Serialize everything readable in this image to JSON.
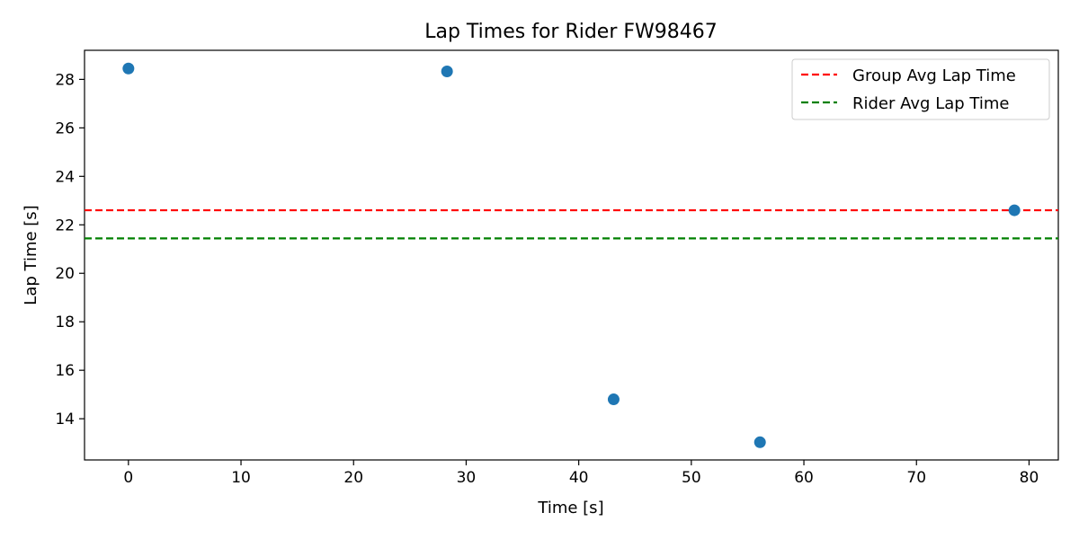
{
  "chart_data": {
    "type": "scatter",
    "title": "Lap Times for Rider FW98467",
    "xlabel": "Time [s]",
    "ylabel": "Lap Time [s]",
    "xlim": [
      -3.9,
      82.6
    ],
    "ylim": [
      12.3,
      29.2
    ],
    "xticks": [
      0,
      10,
      20,
      30,
      40,
      50,
      60,
      70,
      80
    ],
    "yticks": [
      14,
      16,
      18,
      20,
      22,
      24,
      26,
      28
    ],
    "grid": false,
    "legend_position": "top-right",
    "series": [
      {
        "x": [
          0,
          28.3,
          43.1,
          56.1,
          78.7
        ],
        "y": [
          28.45,
          28.33,
          14.8,
          13.03,
          22.6
        ],
        "color": "#1f77b4"
      }
    ],
    "reference_lines": [
      {
        "name": "Group Avg Lap Time",
        "y": 22.6,
        "color": "#ff0000",
        "style": "dashed"
      },
      {
        "name": "Rider Avg Lap Time",
        "y": 21.44,
        "color": "#008000",
        "style": "dashed"
      }
    ]
  }
}
